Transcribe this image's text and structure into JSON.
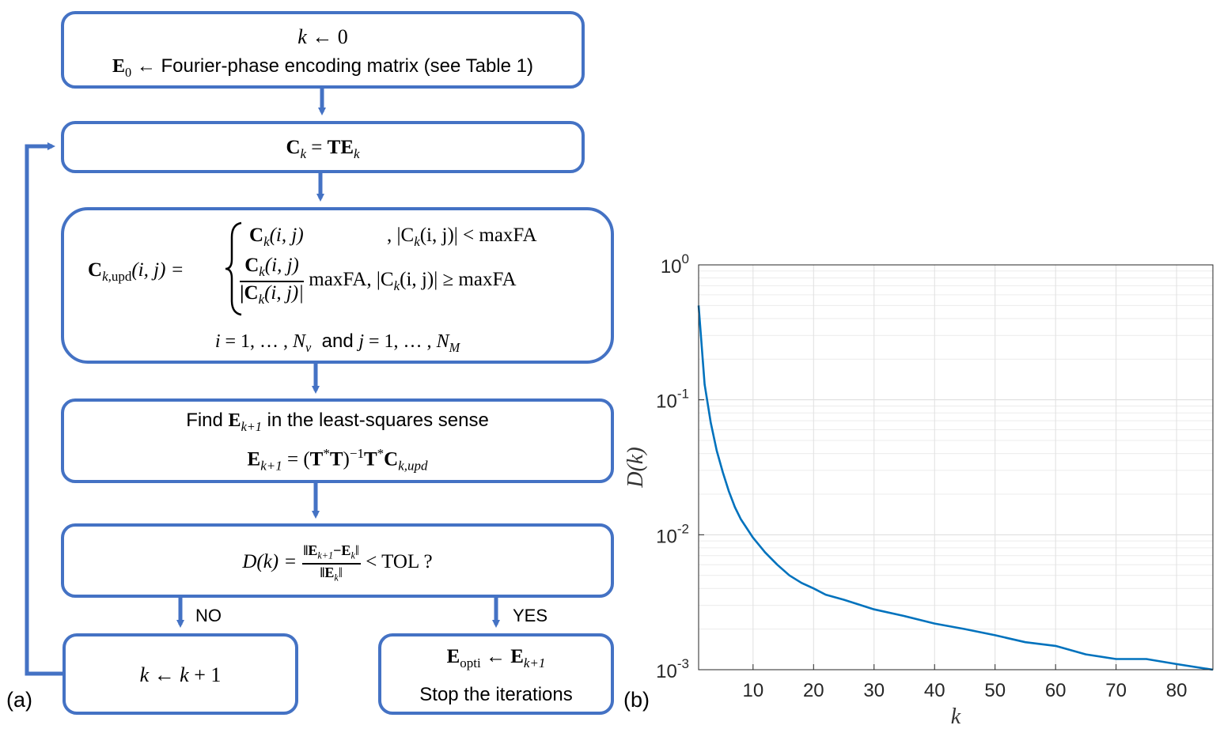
{
  "flowchart": {
    "box1": {
      "line1_var": "k",
      "line1_rest": " ← 0",
      "line2_var": "E",
      "line2_sub": "0",
      "line2_rest": " ← Fourier-phase encoding matrix (see Table 1)"
    },
    "box2": {
      "lhs": "C",
      "lhs_sub": "k",
      "eq": " = ",
      "rhs": "TE",
      "rhs_sub": "k"
    },
    "box3": {
      "lhs": "C",
      "lhs_sub": "k,",
      "lhs_sub_upd": "upd",
      "lhs_args": "(i, j) =",
      "case1_expr": "C",
      "case1_sub": "k",
      "case1_args": "(i, j)",
      "case1_cond": ", |C",
      "case1_cond_sub": "k",
      "case1_cond_rest": "(i, j)| < maxFA",
      "case2_num": "C",
      "case2_num_sub": "k",
      "case2_num_args": "(i, j)",
      "case2_den": "|C",
      "case2_den_sub": "k",
      "case2_den_args": "(i, j)|",
      "case2_cond": "maxFA, |C",
      "case2_cond_sub": "k",
      "case2_cond_rest": "(i, j)| ≥ maxFA",
      "range_i": "i",
      "range_i_rest": " = 1, … , ",
      "range_nv": "N",
      "range_nv_sub": "v",
      "range_and": "  and ",
      "range_j": "j",
      "range_j_rest": " = 1, … , ",
      "range_nm": "N",
      "range_nm_sub": "M"
    },
    "box4": {
      "line1_pre": "Find ",
      "line1_var": "E",
      "line1_sub": "k+1",
      "line1_post": " in the least-squares sense",
      "line2_lhs": "E",
      "line2_lhs_sub": "k+1",
      "line2_eq": " = (",
      "line2_tt": "T",
      "line2_star": "*",
      "line2_t2": "T",
      "line2_close": ")",
      "line2_inv": "−1",
      "line2_t3": "T",
      "line2_star2": "*",
      "line2_c": "C",
      "line2_c_sub": "k,upd"
    },
    "box5": {
      "lhs": "D",
      "lhs_args": "(k) =",
      "num": "‖E",
      "num_sub": "k+1",
      "num_mid": "−E",
      "num_sub2": "k",
      "num_end": "‖",
      "den": "‖E",
      "den_sub": "k",
      "den_end": "‖",
      "rest": " < TOL ?"
    },
    "box6": {
      "var": "k",
      "rest": " ← ",
      "var2": "k",
      "rest2": " + 1"
    },
    "box7": {
      "line1_lhs": "E",
      "line1_lhs_sub": "opti",
      "line1_arrow": " ← ",
      "line1_rhs": "E",
      "line1_rhs_sub": "k+1",
      "line2": "Stop the iterations"
    },
    "label_no": "NO",
    "label_yes": "YES",
    "panel_a": "(a)",
    "panel_b": "(b)"
  },
  "chart_data": {
    "type": "line",
    "yscale": "log",
    "xlabel": "k",
    "ylabel": "D(k)",
    "xlim": [
      1,
      86
    ],
    "ylim": [
      0.001,
      1
    ],
    "xticks": [
      10,
      20,
      30,
      40,
      50,
      60,
      70,
      80
    ],
    "yticks": [
      {
        "value": 1,
        "base": "10",
        "exp": "0"
      },
      {
        "value": 0.1,
        "base": "10",
        "exp": "-1"
      },
      {
        "value": 0.01,
        "base": "10",
        "exp": "-2"
      },
      {
        "value": 0.001,
        "base": "10",
        "exp": "-3"
      }
    ],
    "grid": true,
    "series": [
      {
        "name": "D(k)",
        "color": "#0072bd",
        "x": [
          1,
          2,
          3,
          4,
          5,
          6,
          7,
          8,
          10,
          12,
          14,
          16,
          18,
          20,
          22,
          25,
          30,
          35,
          40,
          45,
          50,
          55,
          60,
          65,
          70,
          75,
          80,
          86
        ],
        "y": [
          0.5,
          0.13,
          0.068,
          0.042,
          0.029,
          0.021,
          0.016,
          0.013,
          0.0095,
          0.0074,
          0.006,
          0.005,
          0.0044,
          0.004,
          0.0036,
          0.0033,
          0.0028,
          0.0025,
          0.0022,
          0.002,
          0.0018,
          0.0016,
          0.0015,
          0.0013,
          0.0012,
          0.0012,
          0.0011,
          0.001
        ]
      }
    ]
  },
  "colors": {
    "box_border": "#4472c4",
    "curve": "#0072bd",
    "grid": "#e3e3e3",
    "axis": "#262626"
  }
}
